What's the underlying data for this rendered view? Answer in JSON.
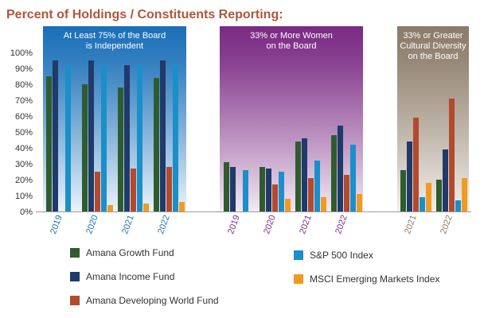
{
  "chart_data": {
    "type": "bar",
    "title": "Percent of Holdings / Constituents Reporting:",
    "ylim": [
      0,
      100
    ],
    "yticks": [
      "0%",
      "10%",
      "20%",
      "30%",
      "40%",
      "50%",
      "60%",
      "70%",
      "80%",
      "90%",
      "100%"
    ],
    "series": [
      {
        "name": "Amana Growth Fund",
        "color": "#2e5c2e"
      },
      {
        "name": "Amana Income Fund",
        "color": "#1f3a6b"
      },
      {
        "name": "Amana Developing World Fund",
        "color": "#b24a2e"
      },
      {
        "name": "S&P 500 Index",
        "color": "#1a8fc9"
      },
      {
        "name": "MSCI Emerging Markets Index",
        "color": "#f29a1f"
      }
    ],
    "panels": [
      {
        "title": "At Least 75% of the Board is Independent",
        "title_lines": [
          "At Least 75% of the Board",
          "is Independent"
        ],
        "color_top": "#1a6fb8",
        "color_bottom": "#eaf3fb",
        "tick_color": "#1a6fb8",
        "categories": [
          "2019",
          "2020",
          "2021",
          "2022"
        ],
        "values": [
          [
            85,
            95,
            null,
            92,
            null
          ],
          [
            80,
            95,
            25,
            92,
            4
          ],
          [
            78,
            92,
            27,
            92,
            5
          ],
          [
            84,
            95,
            28,
            92,
            6
          ]
        ]
      },
      {
        "title": "33% or More Women on the Board",
        "title_lines": [
          "33% or More Women",
          "on the Board"
        ],
        "color_top": "#7a2a83",
        "color_bottom": "#f3e9f4",
        "tick_color": "#7a2a83",
        "categories": [
          "2019",
          "2020",
          "2021",
          "2022"
        ],
        "values": [
          [
            31,
            28,
            null,
            26,
            null
          ],
          [
            28,
            27,
            17,
            25,
            8
          ],
          [
            44,
            46,
            21,
            32,
            9
          ],
          [
            48,
            54,
            23,
            42,
            11
          ]
        ]
      },
      {
        "title": "33% or Greater Cultural Diversity on the Board",
        "title_lines": [
          "33% or Greater",
          "Cultural Diversity",
          "on the Board"
        ],
        "color_top": "#8a7a68",
        "color_bottom": "#f3efea",
        "tick_color": "#8a7a68",
        "categories": [
          "2021",
          "2022"
        ],
        "values": [
          [
            26,
            44,
            59,
            9,
            18
          ],
          [
            20,
            39,
            71,
            7,
            21
          ]
        ]
      }
    ]
  }
}
